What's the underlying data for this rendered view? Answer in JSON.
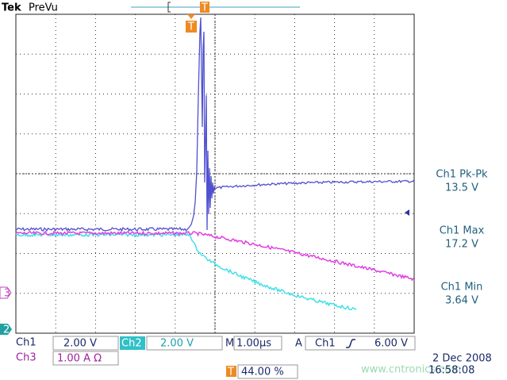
{
  "header": {
    "brand": "Tek",
    "mode": "PreVu"
  },
  "markers": {
    "trigger_top": "T",
    "trigger": "T",
    "ch3": "3",
    "ch2": "2"
  },
  "measurements": [
    {
      "label": "Ch1 Pk-Pk",
      "value": "13.5 V"
    },
    {
      "label": "Ch1 Max",
      "value": "17.2 V"
    },
    {
      "label": "Ch1 Min",
      "value": "3.64 V"
    }
  ],
  "status": {
    "ch1": "Ch1",
    "ch1_scale": "2.00 V",
    "ch2": "Ch2",
    "ch2_scale": "2.00 V",
    "time_prefix": "M",
    "time_scale": "1.00µs",
    "acq": "A",
    "trig_source": "Ch1",
    "trig_level": "6.00 V",
    "ch3": "Ch3",
    "ch3_scale": "1.00 A Ω",
    "trig_pos": "44.00 %",
    "date": "2 Dec 2008",
    "time": "16:58:08"
  },
  "watermark": "www.cntronics.com"
}
